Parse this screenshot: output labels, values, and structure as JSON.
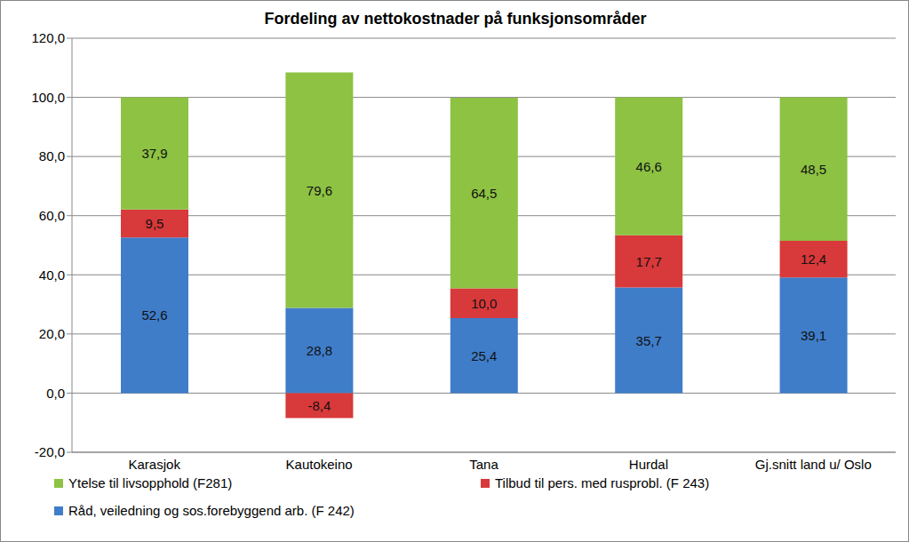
{
  "chart_data": {
    "type": "bar",
    "title": "Fordeling av nettokostnader på funksjonsområder",
    "categories": [
      "Karasjok",
      "Kautokeino",
      "Tana",
      "Hurdal",
      "Gj.snitt land u/ Oslo"
    ],
    "series": [
      {
        "name": "Ytelse til livsopphold (F281)",
        "color": "#8dc243",
        "values": [
          37.9,
          79.6,
          64.5,
          46.6,
          48.5
        ],
        "value_labels": [
          "37,9",
          "79,6",
          "64,5",
          "46,6",
          "48,5"
        ]
      },
      {
        "name": "Tilbud til pers. med rusprobl. (F 243)",
        "color": "#d8393a",
        "values": [
          9.5,
          -8.4,
          10.0,
          17.7,
          12.4
        ],
        "value_labels": [
          "9,5",
          "-8,4",
          "10,0",
          "17,7",
          "12,4"
        ]
      },
      {
        "name": "Råd, veiledning og sos.forebyggend arb. (F 242)",
        "color": "#3f7dc9",
        "values": [
          52.6,
          28.8,
          25.4,
          35.7,
          39.1
        ],
        "value_labels": [
          "52,6",
          "28,8",
          "25,4",
          "35,7",
          "39,1"
        ]
      }
    ],
    "ylim": [
      -20,
      120
    ],
    "yticks": [
      {
        "value": -20,
        "label": "-20,0"
      },
      {
        "value": 0,
        "label": "0,0"
      },
      {
        "value": 20,
        "label": "20,0"
      },
      {
        "value": 40,
        "label": "40,0"
      },
      {
        "value": 60,
        "label": "60,0"
      },
      {
        "value": 80,
        "label": "80,0"
      },
      {
        "value": 100,
        "label": "100,0"
      },
      {
        "value": 120,
        "label": "120,0"
      }
    ],
    "stacked": true,
    "data_labels": true,
    "grid": true
  }
}
